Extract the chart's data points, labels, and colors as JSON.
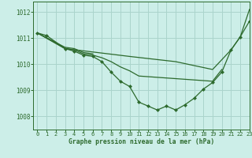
{
  "background_color": "#cceee8",
  "line_color": "#2d6a2d",
  "grid_color": "#aad4cc",
  "xlabel": "Graphe pression niveau de la mer (hPa)",
  "ylim": [
    1007.5,
    1012.4
  ],
  "xlim": [
    -0.5,
    23
  ],
  "yticks": [
    1008,
    1009,
    1010,
    1011,
    1012
  ],
  "xticks": [
    0,
    1,
    2,
    3,
    4,
    5,
    6,
    7,
    8,
    9,
    10,
    11,
    12,
    13,
    14,
    15,
    16,
    17,
    18,
    19,
    20,
    21,
    22,
    23
  ],
  "series": [
    {
      "x": [
        0,
        1,
        3,
        4,
        5,
        6,
        7,
        8,
        9,
        10,
        11,
        12,
        13,
        14,
        15,
        16,
        17,
        18,
        19,
        20,
        21,
        22,
        23
      ],
      "y": [
        1011.2,
        1011.1,
        1010.6,
        1010.5,
        1010.35,
        1010.3,
        1010.1,
        1009.7,
        1009.35,
        1009.15,
        1008.55,
        1008.4,
        1008.25,
        1008.4,
        1008.25,
        1008.45,
        1008.7,
        1009.05,
        1009.3,
        1009.7,
        1010.55,
        1011.05,
        1011.65
      ],
      "marker": true
    },
    {
      "x": [
        0,
        3,
        10,
        15,
        19,
        21,
        22,
        23
      ],
      "y": [
        1011.2,
        1010.6,
        1010.3,
        1010.1,
        1009.8,
        1010.55,
        1011.05,
        1012.1
      ],
      "marker": false
    },
    {
      "x": [
        0,
        3,
        4,
        5,
        6,
        7,
        8,
        9,
        10,
        11,
        19,
        20
      ],
      "y": [
        1011.2,
        1010.6,
        1010.55,
        1010.4,
        1010.35,
        1010.25,
        1010.1,
        1009.9,
        1009.75,
        1009.55,
        1009.35,
        1009.8
      ],
      "marker": false
    },
    {
      "x": [
        0,
        3,
        4,
        5,
        6
      ],
      "y": [
        1011.2,
        1010.65,
        1010.6,
        1010.45,
        1010.4
      ],
      "marker": false
    }
  ]
}
